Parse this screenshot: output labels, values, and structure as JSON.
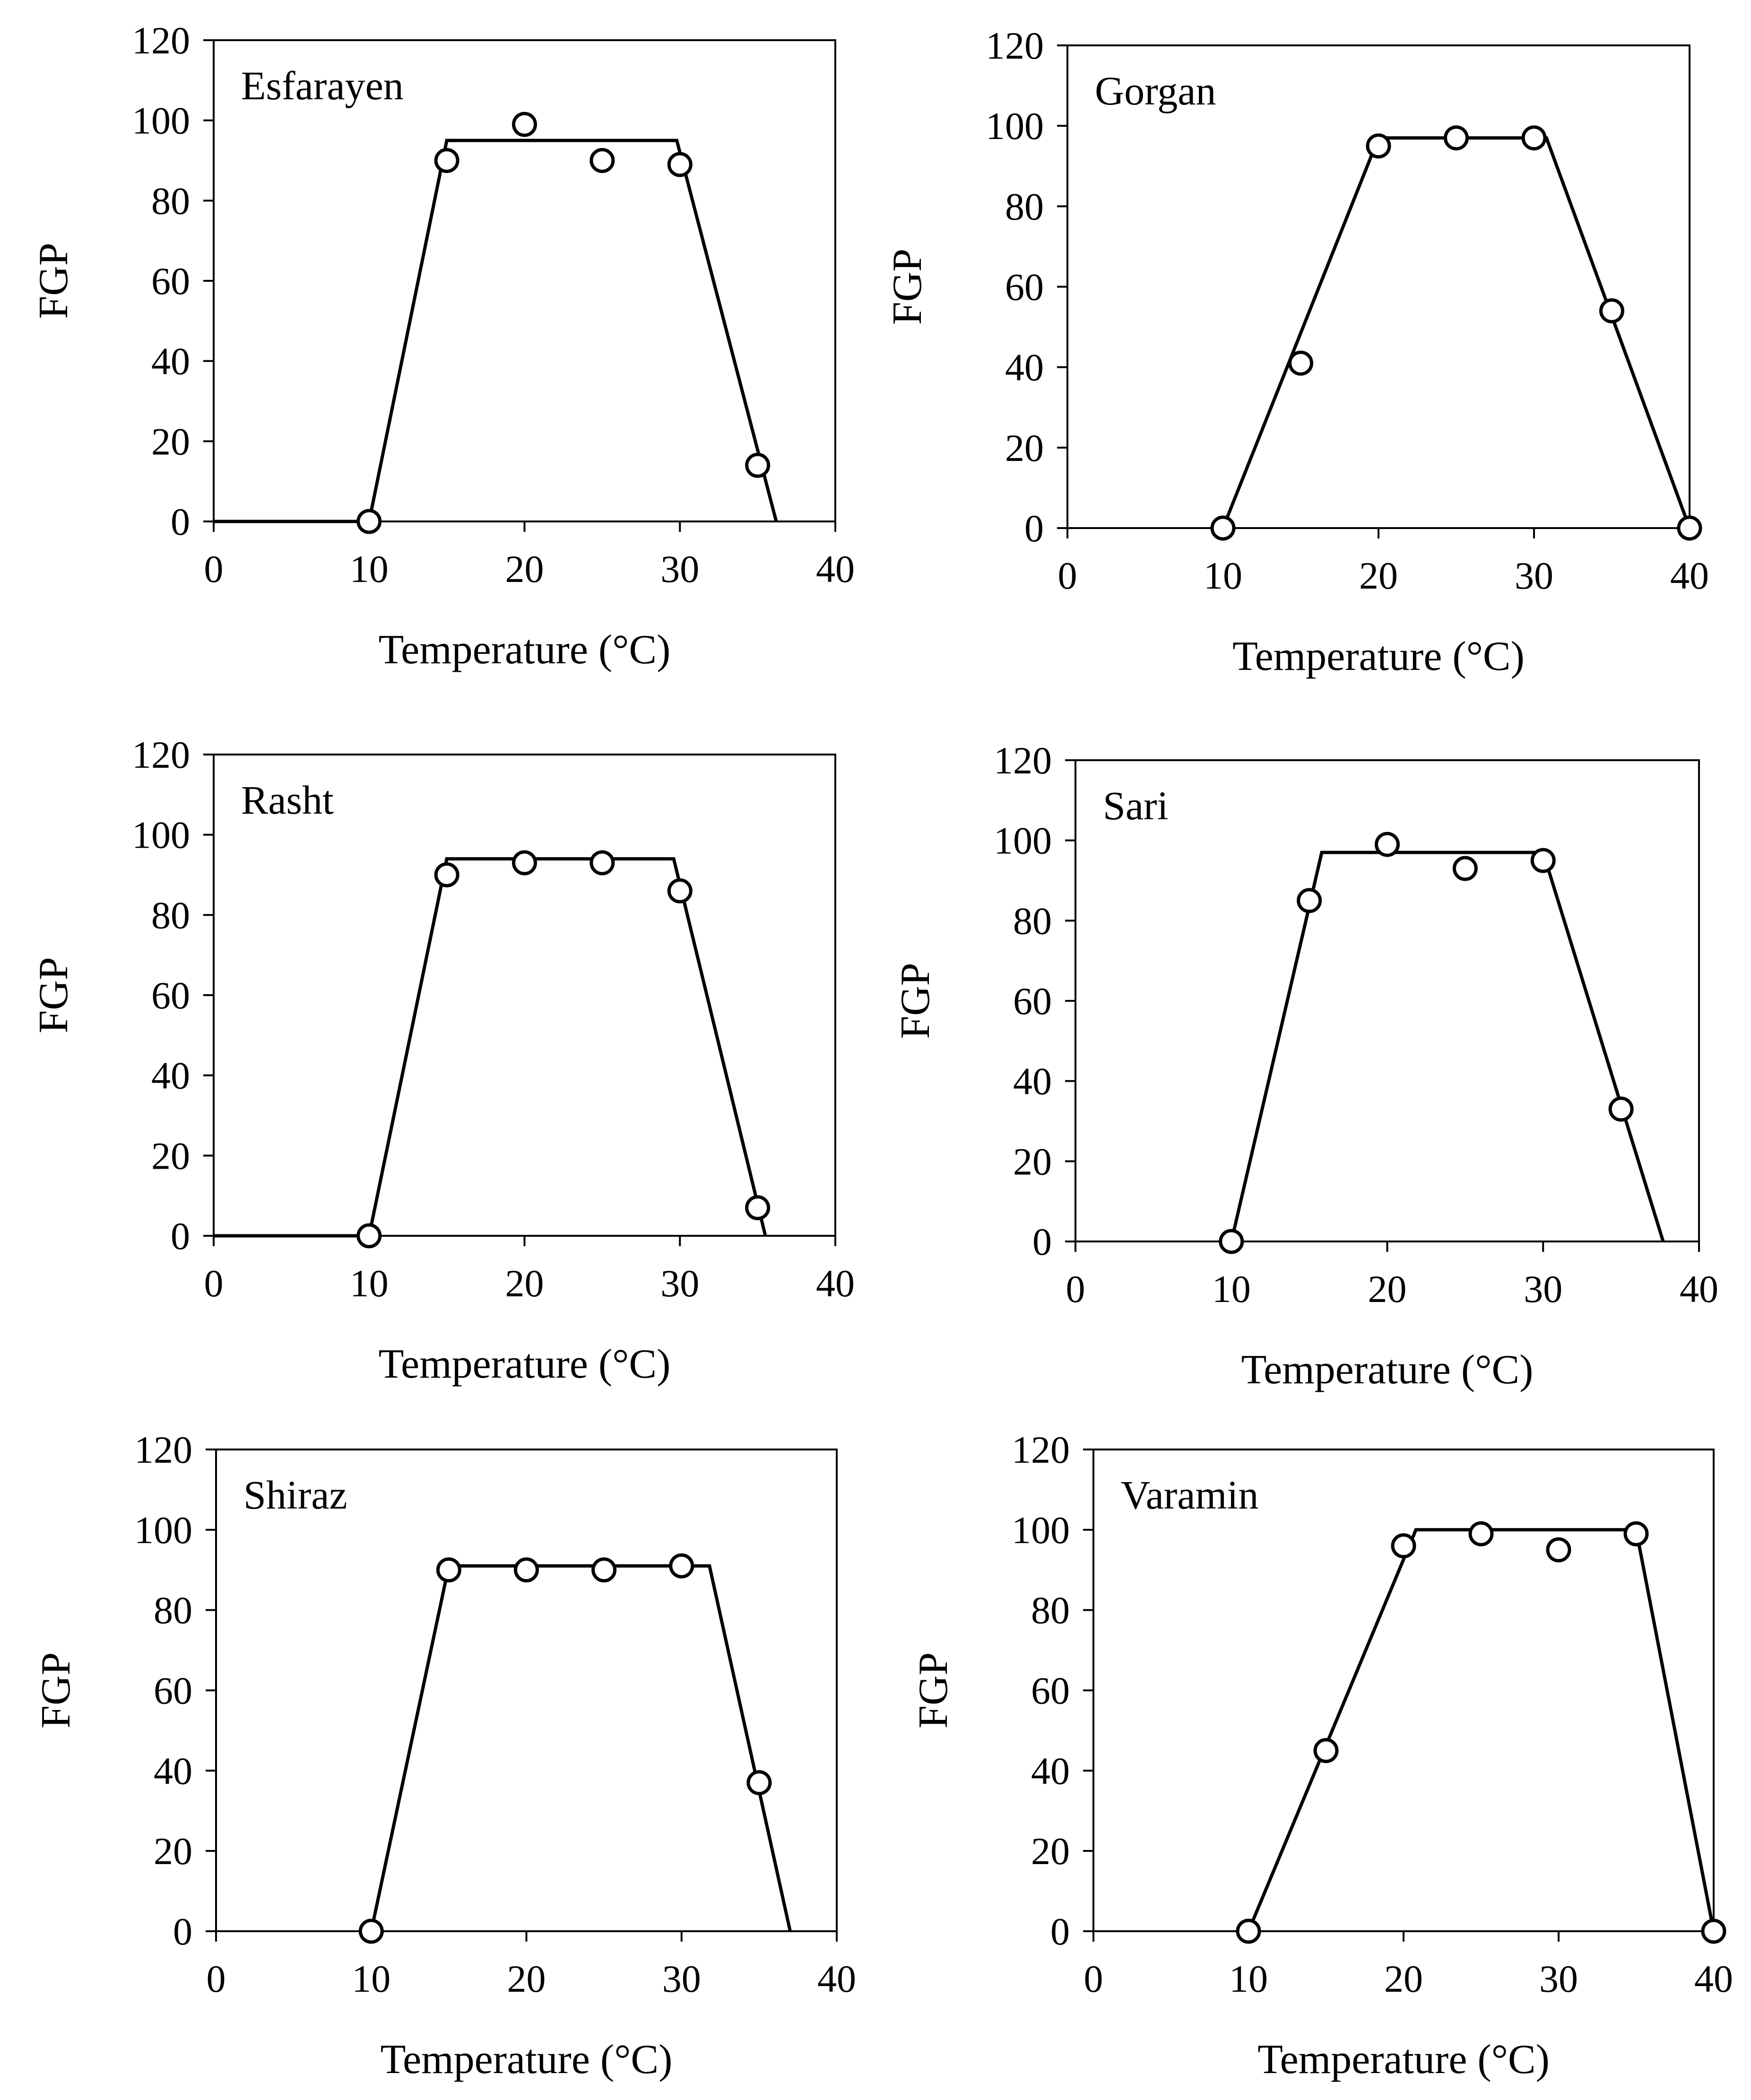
{
  "chart_data": [
    {
      "type": "scatter",
      "title": "Esfarayen",
      "xlabel": "Temperature (°C)",
      "ylabel": "FGP",
      "xlim": [
        0,
        40
      ],
      "ylim": [
        0,
        120
      ],
      "xticks": [
        0,
        10,
        20,
        30,
        40
      ],
      "yticks": [
        0,
        20,
        40,
        60,
        80,
        100,
        120
      ],
      "x": [
        10,
        15,
        20,
        25,
        30,
        35
      ],
      "y": [
        0,
        90,
        99,
        90,
        89,
        14
      ],
      "fit": {
        "x": [
          0,
          10,
          15,
          29.8,
          36.2
        ],
        "y": [
          0,
          0,
          95,
          95,
          0
        ]
      }
    },
    {
      "type": "scatter",
      "title": "Gorgan",
      "xlabel": "Temperature (°C)",
      "ylabel": "FGP",
      "xlim": [
        0,
        40
      ],
      "ylim": [
        0,
        120
      ],
      "xticks": [
        0,
        10,
        20,
        30,
        40
      ],
      "yticks": [
        0,
        20,
        40,
        60,
        80,
        100,
        120
      ],
      "x": [
        10,
        15,
        20,
        25,
        30,
        35,
        40
      ],
      "y": [
        0,
        41,
        95,
        97,
        97,
        54,
        0
      ],
      "fit": {
        "x": [
          10,
          20,
          30.8,
          40
        ],
        "y": [
          0,
          97,
          97,
          0
        ]
      }
    },
    {
      "type": "scatter",
      "title": "Rasht",
      "xlabel": "Temperature (°C)",
      "ylabel": "FGP",
      "xlim": [
        0,
        40
      ],
      "ylim": [
        0,
        120
      ],
      "xticks": [
        0,
        10,
        20,
        30,
        40
      ],
      "yticks": [
        0,
        20,
        40,
        60,
        80,
        100,
        120
      ],
      "x": [
        10,
        15,
        20,
        25,
        30,
        35
      ],
      "y": [
        0,
        90,
        93,
        93,
        86,
        7
      ],
      "fit": {
        "x": [
          0,
          10,
          15,
          29.6,
          35.5
        ],
        "y": [
          0,
          0,
          94,
          94,
          0
        ]
      }
    },
    {
      "type": "scatter",
      "title": "Sari",
      "xlabel": "Temperature (°C)",
      "ylabel": "FGP",
      "xlim": [
        0,
        40
      ],
      "ylim": [
        0,
        120
      ],
      "xticks": [
        0,
        10,
        20,
        30,
        40
      ],
      "yticks": [
        0,
        20,
        40,
        60,
        80,
        100,
        120
      ],
      "x": [
        10,
        15,
        20,
        25,
        30,
        35
      ],
      "y": [
        0,
        85,
        99,
        93,
        95,
        33
      ],
      "fit": {
        "x": [
          10,
          15.8,
          30,
          37.7
        ],
        "y": [
          0,
          97,
          97,
          0
        ]
      }
    },
    {
      "type": "scatter",
      "title": "Shiraz",
      "xlabel": "Temperature (°C)",
      "ylabel": "FGP",
      "xlim": [
        0,
        40
      ],
      "ylim": [
        0,
        120
      ],
      "xticks": [
        0,
        10,
        20,
        30,
        40
      ],
      "yticks": [
        0,
        20,
        40,
        60,
        80,
        100,
        120
      ],
      "x": [
        10,
        15,
        20,
        25,
        30,
        35
      ],
      "y": [
        0,
        90,
        90,
        90,
        91,
        37
      ],
      "fit": {
        "x": [
          10,
          15,
          31.8,
          37
        ],
        "y": [
          0,
          91,
          91,
          0
        ]
      }
    },
    {
      "type": "scatter",
      "title": "Varamin",
      "xlabel": "Temperature (°C)",
      "ylabel": "FGP",
      "xlim": [
        0,
        40
      ],
      "ylim": [
        0,
        120
      ],
      "xticks": [
        0,
        10,
        20,
        30,
        40
      ],
      "yticks": [
        0,
        20,
        40,
        60,
        80,
        100,
        120
      ],
      "x": [
        10,
        15,
        20,
        25,
        30,
        35,
        40
      ],
      "y": [
        0,
        45,
        96,
        99,
        95,
        99,
        0
      ],
      "fit": {
        "x": [
          10,
          20.8,
          35,
          40
        ],
        "y": [
          0,
          100,
          100,
          0
        ]
      }
    }
  ]
}
